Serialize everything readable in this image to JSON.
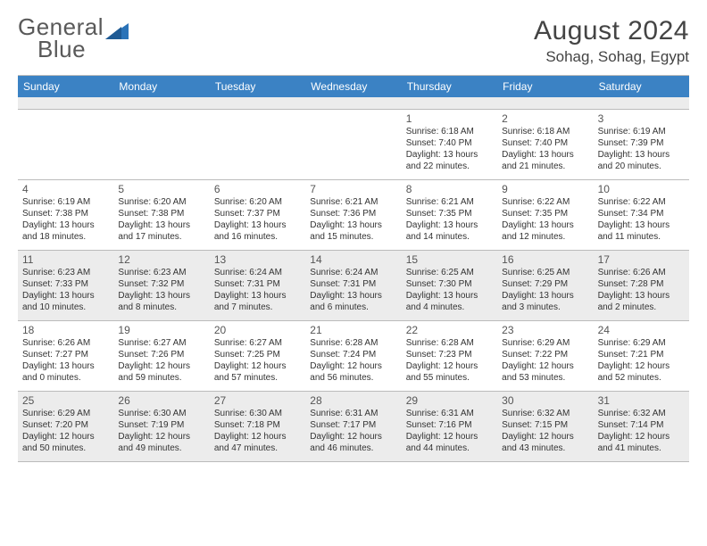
{
  "brand": {
    "general": "General",
    "blue": "Blue",
    "logo_color": "#2a73b8"
  },
  "header": {
    "month_title": "August 2024",
    "location": "Sohag, Sohag, Egypt"
  },
  "colors": {
    "header_bg": "#3b82c4",
    "shaded_bg": "#ececec",
    "border": "#bbbbbb"
  },
  "weekdays": [
    "Sunday",
    "Monday",
    "Tuesday",
    "Wednesday",
    "Thursday",
    "Friday",
    "Saturday"
  ],
  "weeks": [
    [
      {
        "empty": true
      },
      {
        "empty": true
      },
      {
        "empty": true
      },
      {
        "empty": true
      },
      {
        "num": "1",
        "sunrise": "Sunrise: 6:18 AM",
        "sunset": "Sunset: 7:40 PM",
        "daylight": "Daylight: 13 hours and 22 minutes."
      },
      {
        "num": "2",
        "sunrise": "Sunrise: 6:18 AM",
        "sunset": "Sunset: 7:40 PM",
        "daylight": "Daylight: 13 hours and 21 minutes."
      },
      {
        "num": "3",
        "sunrise": "Sunrise: 6:19 AM",
        "sunset": "Sunset: 7:39 PM",
        "daylight": "Daylight: 13 hours and 20 minutes."
      }
    ],
    [
      {
        "num": "4",
        "sunrise": "Sunrise: 6:19 AM",
        "sunset": "Sunset: 7:38 PM",
        "daylight": "Daylight: 13 hours and 18 minutes."
      },
      {
        "num": "5",
        "sunrise": "Sunrise: 6:20 AM",
        "sunset": "Sunset: 7:38 PM",
        "daylight": "Daylight: 13 hours and 17 minutes."
      },
      {
        "num": "6",
        "sunrise": "Sunrise: 6:20 AM",
        "sunset": "Sunset: 7:37 PM",
        "daylight": "Daylight: 13 hours and 16 minutes."
      },
      {
        "num": "7",
        "sunrise": "Sunrise: 6:21 AM",
        "sunset": "Sunset: 7:36 PM",
        "daylight": "Daylight: 13 hours and 15 minutes."
      },
      {
        "num": "8",
        "sunrise": "Sunrise: 6:21 AM",
        "sunset": "Sunset: 7:35 PM",
        "daylight": "Daylight: 13 hours and 14 minutes."
      },
      {
        "num": "9",
        "sunrise": "Sunrise: 6:22 AM",
        "sunset": "Sunset: 7:35 PM",
        "daylight": "Daylight: 13 hours and 12 minutes."
      },
      {
        "num": "10",
        "sunrise": "Sunrise: 6:22 AM",
        "sunset": "Sunset: 7:34 PM",
        "daylight": "Daylight: 13 hours and 11 minutes."
      }
    ],
    [
      {
        "num": "11",
        "shaded": true,
        "sunrise": "Sunrise: 6:23 AM",
        "sunset": "Sunset: 7:33 PM",
        "daylight": "Daylight: 13 hours and 10 minutes."
      },
      {
        "num": "12",
        "shaded": true,
        "sunrise": "Sunrise: 6:23 AM",
        "sunset": "Sunset: 7:32 PM",
        "daylight": "Daylight: 13 hours and 8 minutes."
      },
      {
        "num": "13",
        "shaded": true,
        "sunrise": "Sunrise: 6:24 AM",
        "sunset": "Sunset: 7:31 PM",
        "daylight": "Daylight: 13 hours and 7 minutes."
      },
      {
        "num": "14",
        "shaded": true,
        "sunrise": "Sunrise: 6:24 AM",
        "sunset": "Sunset: 7:31 PM",
        "daylight": "Daylight: 13 hours and 6 minutes."
      },
      {
        "num": "15",
        "shaded": true,
        "sunrise": "Sunrise: 6:25 AM",
        "sunset": "Sunset: 7:30 PM",
        "daylight": "Daylight: 13 hours and 4 minutes."
      },
      {
        "num": "16",
        "shaded": true,
        "sunrise": "Sunrise: 6:25 AM",
        "sunset": "Sunset: 7:29 PM",
        "daylight": "Daylight: 13 hours and 3 minutes."
      },
      {
        "num": "17",
        "shaded": true,
        "sunrise": "Sunrise: 6:26 AM",
        "sunset": "Sunset: 7:28 PM",
        "daylight": "Daylight: 13 hours and 2 minutes."
      }
    ],
    [
      {
        "num": "18",
        "sunrise": "Sunrise: 6:26 AM",
        "sunset": "Sunset: 7:27 PM",
        "daylight": "Daylight: 13 hours and 0 minutes."
      },
      {
        "num": "19",
        "sunrise": "Sunrise: 6:27 AM",
        "sunset": "Sunset: 7:26 PM",
        "daylight": "Daylight: 12 hours and 59 minutes."
      },
      {
        "num": "20",
        "sunrise": "Sunrise: 6:27 AM",
        "sunset": "Sunset: 7:25 PM",
        "daylight": "Daylight: 12 hours and 57 minutes."
      },
      {
        "num": "21",
        "sunrise": "Sunrise: 6:28 AM",
        "sunset": "Sunset: 7:24 PM",
        "daylight": "Daylight: 12 hours and 56 minutes."
      },
      {
        "num": "22",
        "sunrise": "Sunrise: 6:28 AM",
        "sunset": "Sunset: 7:23 PM",
        "daylight": "Daylight: 12 hours and 55 minutes."
      },
      {
        "num": "23",
        "sunrise": "Sunrise: 6:29 AM",
        "sunset": "Sunset: 7:22 PM",
        "daylight": "Daylight: 12 hours and 53 minutes."
      },
      {
        "num": "24",
        "sunrise": "Sunrise: 6:29 AM",
        "sunset": "Sunset: 7:21 PM",
        "daylight": "Daylight: 12 hours and 52 minutes."
      }
    ],
    [
      {
        "num": "25",
        "shaded": true,
        "sunrise": "Sunrise: 6:29 AM",
        "sunset": "Sunset: 7:20 PM",
        "daylight": "Daylight: 12 hours and 50 minutes."
      },
      {
        "num": "26",
        "shaded": true,
        "sunrise": "Sunrise: 6:30 AM",
        "sunset": "Sunset: 7:19 PM",
        "daylight": "Daylight: 12 hours and 49 minutes."
      },
      {
        "num": "27",
        "shaded": true,
        "sunrise": "Sunrise: 6:30 AM",
        "sunset": "Sunset: 7:18 PM",
        "daylight": "Daylight: 12 hours and 47 minutes."
      },
      {
        "num": "28",
        "shaded": true,
        "sunrise": "Sunrise: 6:31 AM",
        "sunset": "Sunset: 7:17 PM",
        "daylight": "Daylight: 12 hours and 46 minutes."
      },
      {
        "num": "29",
        "shaded": true,
        "sunrise": "Sunrise: 6:31 AM",
        "sunset": "Sunset: 7:16 PM",
        "daylight": "Daylight: 12 hours and 44 minutes."
      },
      {
        "num": "30",
        "shaded": true,
        "sunrise": "Sunrise: 6:32 AM",
        "sunset": "Sunset: 7:15 PM",
        "daylight": "Daylight: 12 hours and 43 minutes."
      },
      {
        "num": "31",
        "shaded": true,
        "sunrise": "Sunrise: 6:32 AM",
        "sunset": "Sunset: 7:14 PM",
        "daylight": "Daylight: 12 hours and 41 minutes."
      }
    ]
  ]
}
